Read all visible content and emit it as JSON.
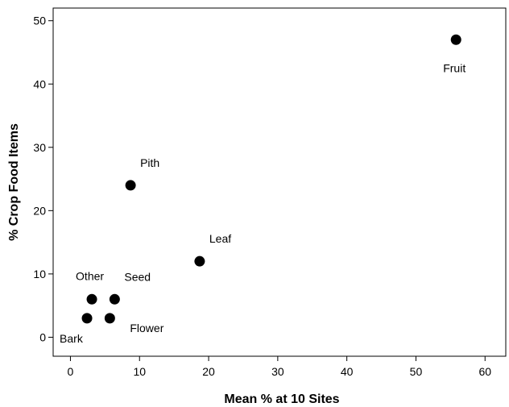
{
  "chart_data": {
    "type": "scatter",
    "xlabel": "Mean % at 10 Sites",
    "ylabel": "% Crop Food Items",
    "xlim": [
      -2.5,
      63
    ],
    "ylim": [
      -3,
      52
    ],
    "xticks": [
      0,
      10,
      20,
      30,
      40,
      50,
      60
    ],
    "yticks": [
      0,
      10,
      20,
      30,
      40,
      50
    ],
    "grid": false,
    "points": [
      {
        "label": "Fruit",
        "x": 55.8,
        "y": 47,
        "label_pos": "below"
      },
      {
        "label": "Pith",
        "x": 8.7,
        "y": 24,
        "label_pos": "above-right"
      },
      {
        "label": "Leaf",
        "x": 18.7,
        "y": 12,
        "label_pos": "above-right"
      },
      {
        "label": "Other",
        "x": 3.1,
        "y": 6,
        "label_pos": "above-left"
      },
      {
        "label": "Seed",
        "x": 6.4,
        "y": 6,
        "label_pos": "above-right"
      },
      {
        "label": "Bark",
        "x": 2.4,
        "y": 3,
        "label_pos": "below-left"
      },
      {
        "label": "Flower",
        "x": 5.7,
        "y": 3,
        "label_pos": "below-right"
      }
    ],
    "marker_color": "#000000"
  }
}
